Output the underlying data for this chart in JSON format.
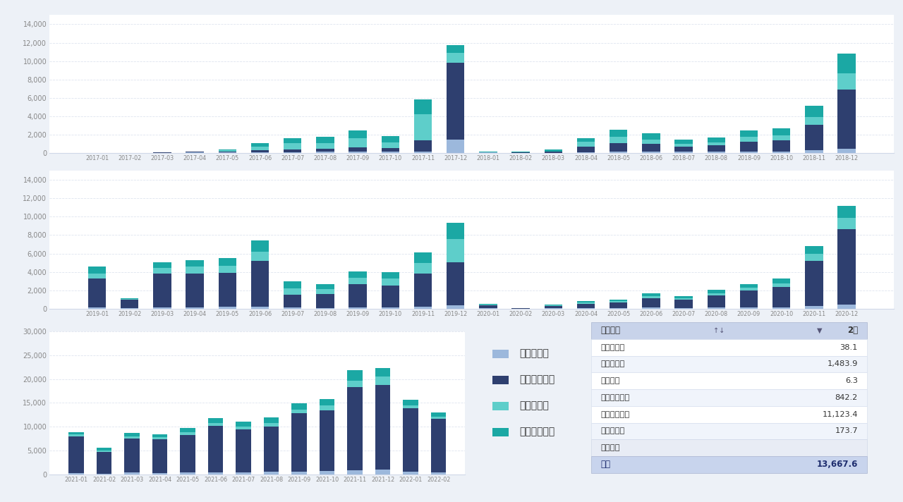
{
  "background_color": "#edf1f7",
  "bar_bg_color": "#ffffff",
  "color_cha_dian": "#9cb8dc",
  "color_chun_cheng": "#2e3f6f",
  "color_chun_ke": "#5ececa",
  "color_chun_zhuan": "#1ba8a4",
  "legend_labels": [
    "插电乘用车",
    "纯电动乘用车",
    "纯电动客车",
    "纯电动专用车"
  ],
  "row1_months": [
    "2017-01",
    "2017-02",
    "2017-03",
    "2017-04",
    "2017-05",
    "2017-06",
    "2017-07",
    "2017-08",
    "2017-09",
    "2017-10",
    "2017-11",
    "2017-12",
    "2018-01",
    "2018-02",
    "2018-03",
    "2018-04",
    "2018-05",
    "2018-06",
    "2018-07",
    "2018-08",
    "2018-09",
    "2018-10",
    "2018-11",
    "2018-12"
  ],
  "row1_cha_dian": [
    20,
    30,
    50,
    60,
    80,
    100,
    120,
    130,
    150,
    130,
    200,
    1500,
    80,
    30,
    50,
    100,
    150,
    180,
    130,
    130,
    160,
    180,
    350,
    500
  ],
  "row1_chun_cheng": [
    0,
    0,
    50,
    80,
    100,
    200,
    300,
    350,
    500,
    450,
    1200,
    8300,
    0,
    50,
    150,
    600,
    900,
    800,
    600,
    700,
    1100,
    1200,
    2700,
    6400
  ],
  "row1_chun_ke": [
    0,
    0,
    0,
    0,
    150,
    400,
    700,
    600,
    1000,
    600,
    2800,
    1100,
    0,
    0,
    0,
    500,
    700,
    500,
    300,
    350,
    500,
    550,
    900,
    1800
  ],
  "row1_chun_zhuan": [
    0,
    0,
    0,
    0,
    100,
    350,
    500,
    700,
    800,
    650,
    1600,
    800,
    80,
    80,
    200,
    400,
    800,
    700,
    450,
    550,
    700,
    800,
    1200,
    2100
  ],
  "row1_ylim": [
    0,
    15000
  ],
  "row2_months": [
    "2019-01",
    "2019-02",
    "2019-03",
    "2019-04",
    "2019-05",
    "2019-06",
    "2019-07",
    "2019-08",
    "2019-09",
    "2019-10",
    "2019-11",
    "2019-12",
    "2020-01",
    "2020-02",
    "2020-03",
    "2020-04",
    "2020-05",
    "2020-06",
    "2020-07",
    "2020-08",
    "2020-09",
    "2020-10",
    "2020-11",
    "2020-12"
  ],
  "row2_cha_dian": [
    150,
    50,
    150,
    150,
    200,
    200,
    150,
    100,
    150,
    150,
    200,
    350,
    100,
    20,
    50,
    50,
    80,
    150,
    100,
    130,
    150,
    150,
    300,
    450
  ],
  "row2_chun_cheng": [
    3100,
    900,
    3700,
    3700,
    3700,
    5000,
    1400,
    1500,
    2500,
    2400,
    3600,
    4700,
    250,
    80,
    250,
    450,
    600,
    1000,
    900,
    1300,
    1800,
    2200,
    4900,
    8200
  ],
  "row2_chun_ke": [
    600,
    100,
    600,
    700,
    800,
    1000,
    700,
    550,
    700,
    700,
    1200,
    2500,
    80,
    0,
    80,
    150,
    150,
    250,
    150,
    250,
    350,
    400,
    800,
    1200
  ],
  "row2_chun_zhuan": [
    700,
    100,
    600,
    700,
    800,
    1200,
    700,
    550,
    700,
    700,
    1100,
    1800,
    80,
    0,
    80,
    150,
    150,
    250,
    250,
    350,
    400,
    500,
    800,
    1350
  ],
  "row2_ylim": [
    0,
    15000
  ],
  "row3_months": [
    "2021-01",
    "2021-02",
    "2021-03",
    "2021-04",
    "2021-05",
    "2021-06",
    "2021-07",
    "2021-08",
    "2021-09",
    "2021-10",
    "2021-11",
    "2021-12",
    "2022-01",
    "2022-02"
  ],
  "row3_cha_dian": [
    250,
    150,
    350,
    300,
    400,
    450,
    400,
    500,
    600,
    700,
    900,
    1000,
    600,
    400
  ],
  "row3_chun_cheng": [
    7700,
    4600,
    7200,
    7100,
    7900,
    9700,
    9000,
    9600,
    12300,
    12800,
    17400,
    17800,
    13200,
    11200
  ],
  "row3_chun_ke": [
    400,
    200,
    400,
    350,
    500,
    600,
    700,
    700,
    700,
    900,
    1400,
    1700,
    700,
    500
  ],
  "row3_chun_zhuan": [
    500,
    600,
    800,
    700,
    900,
    1100,
    1000,
    1150,
    1300,
    1400,
    2200,
    1800,
    1100,
    900
  ],
  "row3_ylim": [
    0,
    30000
  ],
  "table_rows": [
    [
      "插混专用车",
      "38.1"
    ],
    [
      "插混乘用车",
      "1,483.9"
    ],
    [
      "插混客车",
      "6.3"
    ],
    [
      "纯电动专用车",
      "842.2"
    ],
    [
      "纯电动乘用车",
      "11,123.4"
    ],
    [
      "纯电动客车",
      "173.7"
    ],
    [
      "车型种类",
      ""
    ],
    [
      "合计",
      "13,667.6"
    ]
  ],
  "table_header": [
    "车型种类",
    "2月"
  ],
  "grid_color": "#d0d8e8",
  "tick_color": "#888888",
  "spine_color": "#d0d8e8"
}
